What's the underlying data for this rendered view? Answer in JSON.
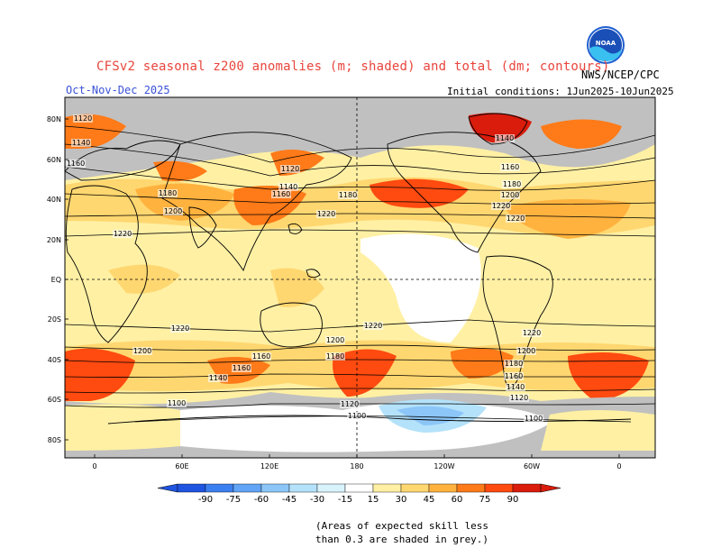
{
  "header": {
    "title": "CFSv2 seasonal z200 anomalies (m; shaded) and total (dm; contours)",
    "season": "Oct-Nov-Dec 2025",
    "initial_conditions": "Initial conditions: 1Jun2025-10Jun2025",
    "agency": "NWS/NCEP/CPC",
    "logo_text": "NOAA"
  },
  "axes": {
    "lat_labels": [
      "80N",
      "60N",
      "40N",
      "20N",
      "EQ",
      "20S",
      "40S",
      "60S",
      "80S"
    ],
    "lon_labels": [
      "0",
      "60E",
      "120E",
      "180",
      "120W",
      "60W",
      "0"
    ]
  },
  "contour_labels": [
    "1120",
    "1140",
    "1160",
    "1180",
    "1200",
    "1220",
    "1220",
    "1200",
    "1180",
    "1160",
    "1140",
    "1120",
    "1100"
  ],
  "colorbar": {
    "ticks": [
      "-90",
      "-75",
      "-60",
      "-45",
      "-30",
      "-15",
      "15",
      "30",
      "45",
      "60",
      "75",
      "90"
    ],
    "colors": {
      "neg": [
        "#1f54e0",
        "#3c7ff0",
        "#62a4f6",
        "#8cc6f8",
        "#b4e2fa",
        "#d9f3fc"
      ],
      "zero": "#ffffff",
      "pos": [
        "#fff0a4",
        "#ffd770",
        "#ffb23e",
        "#ff7a18",
        "#ff4a10",
        "#d91c0c"
      ]
    }
  },
  "map": {
    "ocean_grey": "#c0c0c0",
    "land_line": "#000000"
  },
  "note": "(Areas of expected skill less\nthan 0.3 are shaded in grey.)"
}
